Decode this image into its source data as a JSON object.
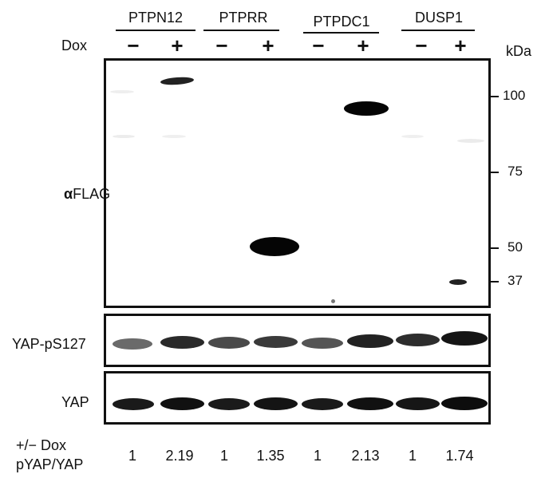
{
  "groups": [
    {
      "name": "PTPN12"
    },
    {
      "name": "PTPRR"
    },
    {
      "name": "PTPDC1"
    },
    {
      "name": "DUSP1"
    }
  ],
  "dox_label": "Dox",
  "signs": {
    "minus": "−",
    "plus": "+"
  },
  "kda_label": "kDa",
  "markers": [
    {
      "label": "100",
      "kda": 100
    },
    {
      "label": "75",
      "kda": 75
    },
    {
      "label": "50",
      "kda": 50
    },
    {
      "label": "37",
      "kda": 37
    }
  ],
  "panels": {
    "flag_label_prefix": "α",
    "flag_label": "FLAG",
    "pyap_label": "YAP-pS127",
    "yap_label": "YAP"
  },
  "footer": {
    "row1": "+/− Dox",
    "row2": "pYAP/YAP",
    "ratios": [
      "1",
      "2.19",
      "1",
      "1.35",
      "1",
      "2.13",
      "1",
      "1.74"
    ]
  }
}
